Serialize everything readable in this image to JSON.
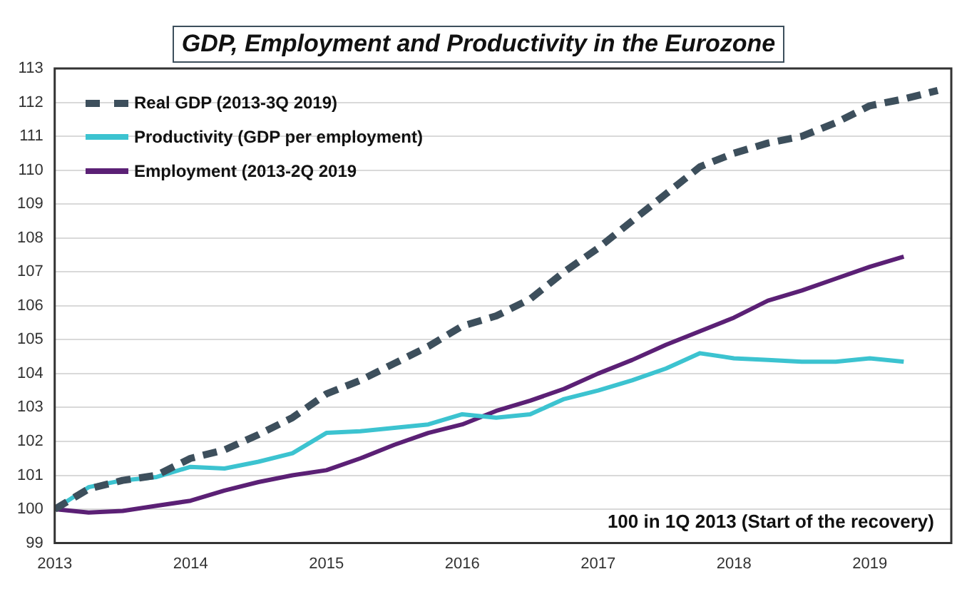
{
  "chart_data": {
    "type": "line",
    "title": "GDP, Employment and Productivity in the Eurozone",
    "x": [
      2013,
      2013.25,
      2013.5,
      2013.75,
      2014,
      2014.25,
      2014.5,
      2014.75,
      2015,
      2015.25,
      2015.5,
      2015.75,
      2016,
      2016.25,
      2016.5,
      2016.75,
      2017,
      2017.25,
      2017.5,
      2017.75,
      2018,
      2018.25,
      2018.5,
      2018.75,
      2019,
      2019.25,
      2019.5
    ],
    "series": [
      {
        "name": "Real GDP (2013-3Q 2019)",
        "color": "#3d4f5c",
        "line_style": "dashed",
        "values": [
          100,
          100.6,
          100.85,
          101.0,
          101.5,
          101.75,
          102.2,
          102.7,
          103.4,
          103.8,
          104.3,
          104.8,
          105.4,
          105.7,
          106.2,
          107.0,
          107.7,
          108.5,
          109.3,
          110.1,
          110.5,
          110.8,
          111.0,
          111.4,
          111.9,
          112.1,
          112.35
        ]
      },
      {
        "name": "Productivity (GDP per employment)",
        "color": "#3cc3d0",
        "line_style": "solid",
        "values": [
          100,
          100.65,
          100.85,
          100.95,
          101.25,
          101.2,
          101.4,
          101.65,
          102.25,
          102.3,
          102.4,
          102.5,
          102.8,
          102.7,
          102.8,
          103.25,
          103.5,
          103.8,
          104.15,
          104.6,
          104.45,
          104.4,
          104.35,
          104.35,
          104.45,
          104.35,
          null
        ]
      },
      {
        "name": "Employment (2013-2Q 2019",
        "color": "#5b2075",
        "line_style": "solid",
        "values": [
          100,
          99.9,
          99.95,
          100.1,
          100.25,
          100.55,
          100.8,
          101.0,
          101.15,
          101.5,
          101.9,
          102.25,
          102.5,
          102.9,
          103.2,
          103.55,
          104.0,
          104.4,
          104.85,
          105.25,
          105.65,
          106.15,
          106.45,
          106.8,
          107.15,
          107.45,
          null
        ]
      }
    ],
    "xlim": [
      2013,
      2019.6
    ],
    "xticks": [
      2013,
      2014,
      2015,
      2016,
      2017,
      2018,
      2019
    ],
    "ylim": [
      99,
      113
    ],
    "yticks": [
      99,
      100,
      101,
      102,
      103,
      104,
      105,
      106,
      107,
      108,
      109,
      110,
      111,
      112,
      113
    ],
    "grid": "y",
    "legend": "top left",
    "marker": "none",
    "annotations": [
      "100 in 1Q 2013 (Start of the recovery)"
    ]
  }
}
